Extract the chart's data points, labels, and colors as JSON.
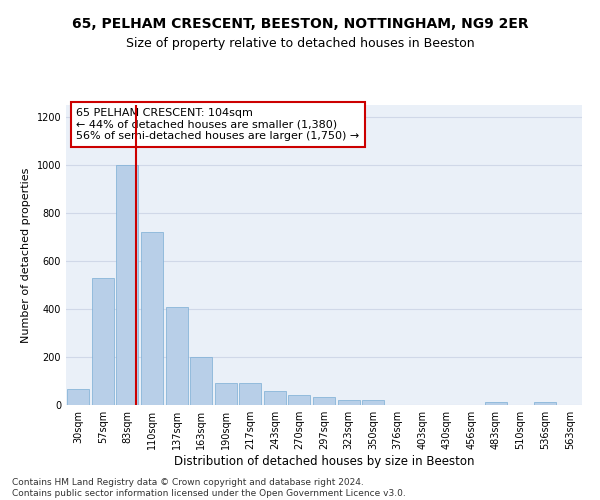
{
  "title1": "65, PELHAM CRESCENT, BEESTON, NOTTINGHAM, NG9 2ER",
  "title2": "Size of property relative to detached houses in Beeston",
  "xlabel": "Distribution of detached houses by size in Beeston",
  "ylabel": "Number of detached properties",
  "categories": [
    "30sqm",
    "57sqm",
    "83sqm",
    "110sqm",
    "137sqm",
    "163sqm",
    "190sqm",
    "217sqm",
    "243sqm",
    "270sqm",
    "297sqm",
    "323sqm",
    "350sqm",
    "376sqm",
    "403sqm",
    "430sqm",
    "456sqm",
    "483sqm",
    "510sqm",
    "536sqm",
    "563sqm"
  ],
  "values": [
    68,
    528,
    1000,
    720,
    408,
    198,
    90,
    90,
    58,
    40,
    32,
    20,
    20,
    0,
    0,
    0,
    0,
    12,
    0,
    12,
    0
  ],
  "bar_color": "#b8cfe8",
  "bar_edge_color": "#7aadd4",
  "red_line_x": 2.35,
  "annotation_text": "65 PELHAM CRESCENT: 104sqm\n← 44% of detached houses are smaller (1,380)\n56% of semi-detached houses are larger (1,750) →",
  "annotation_box_color": "#ffffff",
  "annotation_box_edge": "#cc0000",
  "red_line_color": "#cc0000",
  "grid_color": "#d0d8e8",
  "background_color": "#eaf0f8",
  "footer_text": "Contains HM Land Registry data © Crown copyright and database right 2024.\nContains public sector information licensed under the Open Government Licence v3.0.",
  "ylim": [
    0,
    1250
  ],
  "yticks": [
    0,
    200,
    400,
    600,
    800,
    1000,
    1200
  ],
  "title1_fontsize": 10,
  "title2_fontsize": 9,
  "xlabel_fontsize": 8.5,
  "ylabel_fontsize": 8,
  "tick_fontsize": 7,
  "annotation_fontsize": 8,
  "footer_fontsize": 6.5
}
